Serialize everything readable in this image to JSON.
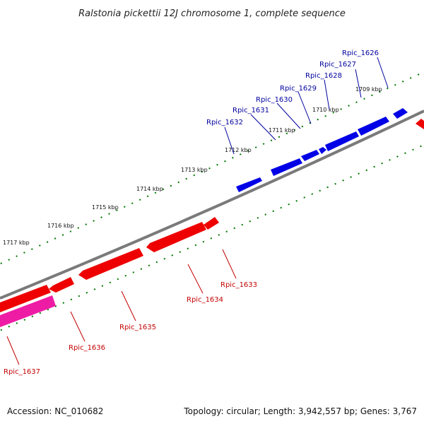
{
  "title": "Ralstonia pickettii 12J chromosome 1, complete sequence",
  "footer": {
    "accession": "Accession: NC_010682",
    "summary": "Topology: circular; Length: 3,942,557 bp; Genes: 3,767"
  },
  "colors": {
    "plus_strand": "#0000e6",
    "minus_strand": "#ee0000",
    "pink_feature": "#ee1ca4",
    "backbone": "#7a7a7a",
    "ticks": "#007700",
    "plus_label": "#00009e",
    "minus_label": "#c40000"
  },
  "scale_labels": [
    "1709 kbp",
    "1710 kbp",
    "1711 kbp",
    "1712 kbp",
    "1713 kbp",
    "1714 kbp",
    "1715 kbp",
    "1716 kbp",
    "1717 kbp"
  ],
  "plus_genes": [
    "Rpic_1626",
    "Rpic_1627",
    "Rpic_1628",
    "Rpic_1629",
    "Rpic_1630",
    "Rpic_1631",
    "Rpic_1632"
  ],
  "minus_genes": [
    "Rpic_1633",
    "Rpic_1634",
    "Rpic_1635",
    "Rpic_1636",
    "Rpic_1637"
  ]
}
